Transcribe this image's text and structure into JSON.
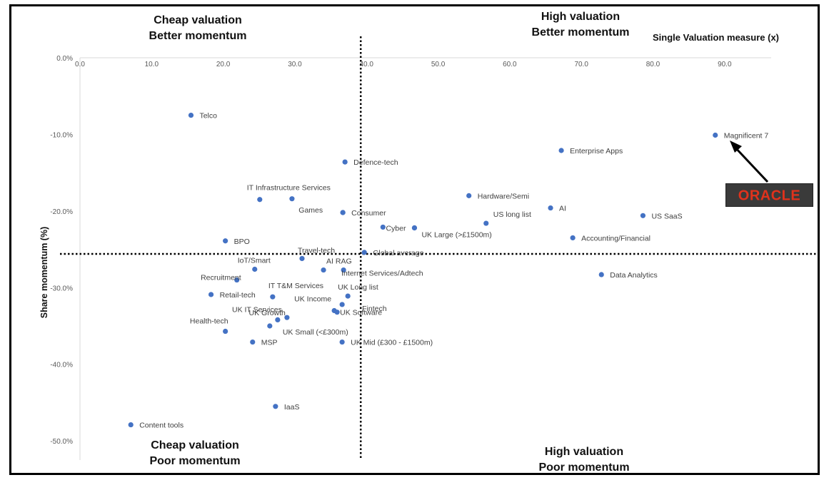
{
  "quadrants": {
    "top_left": [
      "Cheap valuation",
      "Better momentum"
    ],
    "top_right": [
      "High valuation",
      "Better momentum"
    ],
    "bottom_left": [
      "Cheap valuation",
      "Poor momentum"
    ],
    "bottom_right": [
      "High valuation",
      "Poor momentum"
    ]
  },
  "logo_text": "ORACLE",
  "chart_data": {
    "type": "scatter",
    "xlabel": "Single Valuation measure (x)",
    "ylabel": "Share momentum (%)",
    "xlim": [
      0,
      96.5
    ],
    "ylim": [
      -52.5,
      0
    ],
    "x_ticks": [
      0,
      10,
      20,
      30,
      40,
      50,
      60,
      70,
      80,
      90
    ],
    "x_tick_labels": [
      "0.0",
      "10.0",
      "20.0",
      "30.0",
      "40.0",
      "50.0",
      "60.0",
      "70.0",
      "80.0",
      "90.0"
    ],
    "y_ticks": [
      0,
      -10,
      -20,
      -30,
      -40,
      -50
    ],
    "y_tick_labels": [
      "0.0%",
      "-10.0%",
      "-20.0%",
      "-30.0%",
      "-40.0%",
      "-50.0%"
    ],
    "grid": false,
    "reference_lines": {
      "x": 39.2,
      "y": -25.6
    },
    "point_color": "#4472C4",
    "points": [
      {
        "label": "Telco",
        "x": 15.5,
        "y": -7.5
      },
      {
        "label": "Magnificent 7",
        "x": 88.7,
        "y": -10.1
      },
      {
        "label": "Enterprise Apps",
        "x": 67.2,
        "y": -12.1
      },
      {
        "label": "Defence-tech",
        "x": 37.0,
        "y": -13.6
      },
      {
        "label": "IT Infrastructure Services",
        "x": 25.1,
        "y": -18.5
      },
      {
        "label": "",
        "x": 29.6,
        "y": -18.4
      },
      {
        "label": "Hardware/Semi",
        "x": 54.3,
        "y": -18.0
      },
      {
        "label": "AI",
        "x": 65.7,
        "y": -19.6
      },
      {
        "label": "US SaaS",
        "x": 78.6,
        "y": -20.6
      },
      {
        "label": "Games",
        "x": 36.7,
        "y": -20.2
      },
      {
        "label": "Consumer",
        "x": 36.7,
        "y": -20.2
      },
      {
        "label": "US long list",
        "x": 56.7,
        "y": -21.6
      },
      {
        "label": "",
        "x": 42.3,
        "y": -22.1
      },
      {
        "label": "Cyber",
        "x": 46.7,
        "y": -22.2
      },
      {
        "label": "UK Large (>£1500m)",
        "x": 46.7,
        "y": -22.2
      },
      {
        "label": "BPO",
        "x": 20.3,
        "y": -23.9
      },
      {
        "label": "Accounting/Financial",
        "x": 68.8,
        "y": -23.5
      },
      {
        "label": "Global average",
        "x": 39.7,
        "y": -25.4
      },
      {
        "label": "Travel-tech",
        "x": 31.0,
        "y": -26.2
      },
      {
        "label": "IoT/Smart",
        "x": 24.4,
        "y": -27.6
      },
      {
        "label": "AI RAG",
        "x": 34.0,
        "y": -27.7
      },
      {
        "label": "Internet Services/Adtech",
        "x": 36.8,
        "y": -27.7
      },
      {
        "label": "Data Analytics",
        "x": 72.8,
        "y": -28.3
      },
      {
        "label": "Recruitment",
        "x": 21.9,
        "y": -29.0
      },
      {
        "label": "Retail-tech",
        "x": 18.3,
        "y": -30.9
      },
      {
        "label": "IT T&M Services",
        "x": 26.9,
        "y": -31.2
      },
      {
        "label": "UK Long list",
        "x": 37.4,
        "y": -31.1
      },
      {
        "label": "Fintech",
        "x": 36.6,
        "y": -32.2
      },
      {
        "label": "UK Income",
        "x": 35.5,
        "y": -33.0
      },
      {
        "label": "UK Software",
        "x": 35.9,
        "y": -33.2
      },
      {
        "label": "UK IT Services",
        "x": 27.6,
        "y": -34.2
      },
      {
        "label": "UK Growth",
        "x": 28.9,
        "y": -33.9
      },
      {
        "label": "UK Small (<£300m)",
        "x": 26.5,
        "y": -35.0
      },
      {
        "label": "Health-tech",
        "x": 20.3,
        "y": -35.7
      },
      {
        "label": "MSP",
        "x": 24.1,
        "y": -37.1
      },
      {
        "label": "UK Mid (£300 - £1500m)",
        "x": 36.6,
        "y": -37.1
      },
      {
        "label": "IaaS",
        "x": 27.3,
        "y": -45.5
      },
      {
        "label": "Content tools",
        "x": 7.1,
        "y": -47.9
      }
    ]
  }
}
